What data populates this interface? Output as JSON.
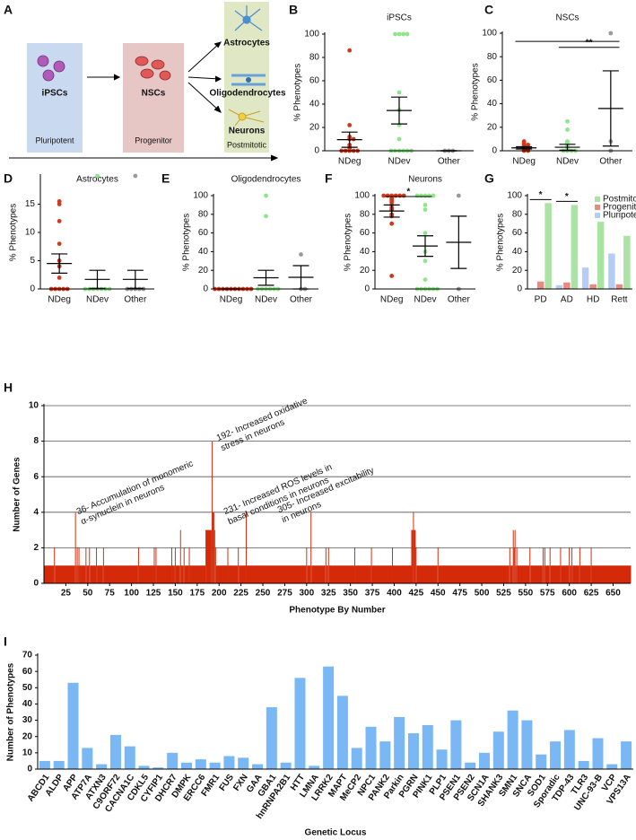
{
  "panel_a": {
    "panel": "A",
    "stages": [
      {
        "name": "iPSCs",
        "stage": "Pluripotent"
      },
      {
        "name": "NSCs",
        "stage": "Progenitor"
      }
    ],
    "fates": [
      "Astrocytes",
      "Oligodendrocytes",
      "Neurons"
    ],
    "fate_stage": "Postmitotic"
  },
  "chart_data": [
    {
      "panel": "B",
      "type": "dot",
      "title": "iPSCs",
      "ylabel": "% Phenotypes",
      "ylim": [
        0,
        100
      ],
      "yticks": [
        0,
        20,
        40,
        60,
        80,
        100
      ],
      "categories": [
        "NDeg",
        "NDev",
        "Other"
      ],
      "colors": [
        "#d2391b",
        "#8ee58a",
        "#9a9a9a"
      ],
      "points": [
        [
          86,
          22,
          12,
          10,
          10,
          5,
          3,
          2,
          0,
          0,
          0,
          0,
          0
        ],
        [
          100,
          100,
          100,
          100,
          50,
          35,
          22,
          10,
          0,
          0,
          0,
          0,
          0,
          0
        ],
        [
          0,
          0,
          0
        ]
      ],
      "means": [
        9.5,
        34.5,
        0
      ],
      "errors": [
        6.5,
        11.5,
        0
      ]
    },
    {
      "panel": "C",
      "type": "dot",
      "title": "NSCs",
      "ylabel": "% Phenotypes",
      "ylim": [
        0,
        100
      ],
      "yticks": [
        0,
        20,
        40,
        60,
        80,
        100
      ],
      "categories": [
        "NDeg",
        "NDev",
        "Other"
      ],
      "colors": [
        "#d2391b",
        "#8ee58a",
        "#9a9a9a"
      ],
      "points": [
        [
          8,
          7,
          6,
          5,
          5,
          4,
          3,
          2,
          2,
          1,
          0,
          0
        ],
        [
          25,
          18,
          8,
          7,
          4,
          2,
          0,
          0,
          0,
          0
        ],
        [
          100,
          8,
          0
        ]
      ],
      "means": [
        2.5,
        3,
        36
      ],
      "errors": [
        1,
        2.5,
        32
      ],
      "significance": "**"
    },
    {
      "panel": "D",
      "type": "dot",
      "title": "Astrocytes",
      "ylabel": "% Phenotypes",
      "ylim": [
        0,
        20
      ],
      "yticks": [
        0,
        5,
        10,
        15
      ],
      "categories": [
        "NDeg",
        "NDev",
        "Other"
      ],
      "colors": [
        "#d2391b",
        "#8ee58a",
        "#9a9a9a"
      ],
      "points": [
        [
          15.5,
          15,
          12,
          8,
          5,
          4,
          2,
          0,
          0,
          0,
          0,
          0
        ],
        [
          20,
          0,
          0,
          0,
          0,
          0,
          0,
          0
        ],
        [
          20,
          0,
          0,
          0,
          0,
          0
        ]
      ],
      "means": [
        4.5,
        1.7,
        1.7
      ],
      "errors": [
        1.7,
        1.6,
        1.6
      ]
    },
    {
      "panel": "E",
      "type": "dot",
      "title": "Oligodendrocytes",
      "ylabel": "% Phenotypes",
      "ylim": [
        0,
        100
      ],
      "yticks": [
        0,
        20,
        40,
        60,
        80,
        100
      ],
      "categories": [
        "NDeg",
        "NDev",
        "Other"
      ],
      "colors": [
        "#d2391b",
        "#8ee58a",
        "#9a9a9a"
      ],
      "points": [
        [
          0,
          0,
          0,
          0,
          0,
          0,
          0,
          0,
          0,
          0
        ],
        [
          100,
          78,
          0,
          0,
          0,
          0,
          0,
          0
        ],
        [
          37,
          0,
          0
        ]
      ],
      "means": [
        0,
        12,
        12.5
      ],
      "errors": [
        0,
        8,
        12.5
      ]
    },
    {
      "panel": "F",
      "type": "dot",
      "title": "Neurons",
      "ylabel": "% Phenotypes",
      "ylim": [
        0,
        100
      ],
      "yticks": [
        0,
        20,
        40,
        60,
        80,
        100
      ],
      "categories": [
        "NDeg",
        "NDev",
        "Other"
      ],
      "colors": [
        "#d2391b",
        "#8ee58a",
        "#9a9a9a"
      ],
      "points": [
        [
          100,
          100,
          100,
          100,
          100,
          100,
          97,
          95,
          93,
          90,
          87,
          85,
          80,
          78,
          70,
          14
        ],
        [
          100,
          100,
          100,
          100,
          100,
          90,
          85,
          60,
          40,
          30,
          10,
          0,
          0,
          0,
          0,
          0,
          0
        ],
        [
          100,
          0
        ]
      ],
      "means": [
        83.5,
        46,
        50
      ],
      "errors": [
        6.5,
        11,
        28
      ],
      "significance": "*"
    },
    {
      "panel": "G",
      "type": "bar",
      "ylabel": "% Phenotypes",
      "ylim": [
        0,
        100
      ],
      "yticks": [
        0,
        20,
        40,
        60,
        80,
        100
      ],
      "categories": [
        "PD",
        "AD",
        "HD",
        "Rett"
      ],
      "legend": "top-right",
      "series": [
        {
          "name": "Postmitotic",
          "color": "#a9e4a2",
          "values": [
            92,
            90,
            72,
            57
          ]
        },
        {
          "name": "Progenitor",
          "color": "#e98a80",
          "values": [
            8,
            7,
            5,
            5
          ]
        },
        {
          "name": "Pluripotent",
          "color": "#b5cdf3",
          "values": [
            0,
            4,
            23,
            38
          ]
        }
      ],
      "significance": [
        "*",
        "*"
      ]
    },
    {
      "panel": "H",
      "type": "histogram",
      "xlabel": "Phenotype By Number",
      "ylabel": "Number of Genes",
      "color": "#d42a0a",
      "grid": true,
      "xlim": [
        0,
        670
      ],
      "xticks": [
        25,
        50,
        75,
        100,
        125,
        150,
        175,
        200,
        225,
        250,
        275,
        300,
        325,
        350,
        375,
        400,
        425,
        450,
        475,
        500,
        525,
        550,
        575,
        600,
        625,
        650
      ],
      "ylim": [
        0,
        10
      ],
      "yticks": [
        0,
        2,
        4,
        6,
        8,
        10
      ],
      "bins": [
        0.5,
        11.5,
        12.5,
        35.5,
        36.5,
        37.5,
        38.5,
        39.5,
        40.5,
        47.5,
        48.5,
        51.5,
        52.5,
        59.5,
        60.5,
        67.5,
        68.5,
        107.5,
        108.5,
        125.5,
        126.5,
        127.5,
        128.5,
        145.5,
        146.5,
        149.5,
        150.5,
        155.5,
        156.5,
        159.5,
        160.5,
        165.5,
        166.5,
        184.5,
        191.5,
        192.5,
        194.5,
        195.5,
        196.5,
        209.5,
        210.5,
        221.5,
        222.5,
        230.5,
        231.5,
        299.5,
        300.5,
        304.5,
        305.5,
        321.5,
        322.5,
        324.5,
        325.5,
        354.5,
        355.5,
        373.5,
        374.5,
        397.5,
        398.5,
        419.5,
        421.5,
        422.5,
        424.5,
        425.5,
        449.5,
        450.5,
        531.5,
        532.5,
        535.5,
        536.5,
        537.5,
        538.5,
        539.5,
        540.5,
        554.5,
        555.5,
        569.5,
        570.5,
        571.5,
        572.5,
        577.5,
        578.5,
        589.5,
        590.5,
        599.5,
        600.5,
        602.5,
        603.5,
        611.5,
        612.5,
        624.5,
        625.5,
        670.5
      ],
      "counts": [
        1,
        2,
        1,
        4,
        1,
        2,
        1,
        2,
        1,
        2,
        1,
        2,
        1,
        2,
        1,
        2,
        1,
        2,
        1,
        2,
        1,
        2,
        1,
        2,
        1,
        2,
        1,
        3,
        1,
        2,
        1,
        2,
        1,
        3,
        8,
        4,
        3,
        2,
        1,
        2,
        1,
        2,
        1,
        4,
        1,
        2,
        1,
        4,
        1,
        2,
        1,
        2,
        1,
        2,
        1,
        2,
        1,
        2,
        1,
        3,
        4,
        3,
        2,
        1,
        2,
        1,
        2,
        1,
        3,
        2,
        3,
        1,
        2,
        1,
        2,
        1,
        2,
        1,
        2,
        1,
        2,
        1,
        2,
        1,
        2,
        1,
        2,
        1,
        2,
        1,
        2,
        1
      ],
      "annotations": [
        {
          "lines": [
            "36- Accumulation of monomeric",
            "α-synuclein in neurons"
          ]
        },
        {
          "lines": [
            "192- Increased oxidative",
            "stress in neurons"
          ]
        },
        {
          "lines": [
            "231- Increased ROS levels in",
            "basal conditions in neurons"
          ]
        },
        {
          "lines": [
            "305- Increased excitability",
            "in neurons"
          ]
        }
      ]
    },
    {
      "panel": "I",
      "type": "bar",
      "xlabel": "Genetic Locus",
      "ylabel": "Number of Phenotypes",
      "color": "#7ab8f5",
      "ylim": [
        0,
        70
      ],
      "yticks": [
        0,
        10,
        20,
        30,
        40,
        50,
        60,
        70
      ],
      "categories": [
        "ABCD1",
        "ALDP",
        "APP",
        "ATP7A",
        "ATXN3",
        "C9ORF72",
        "CACNA1C",
        "CDKL5",
        "CYFIP1",
        "DHCR7",
        "DMPK",
        "ERCC6",
        "FMR1",
        "FUS",
        "FXN",
        "GAA",
        "GBA1",
        "hnRNPA2B1",
        "HTT",
        "LMNA",
        "LRRK2",
        "MAPT",
        "MeCP2",
        "NPC1",
        "PANK2",
        "Parkin",
        "PGRN",
        "PINK1",
        "PLP1",
        "PSEN1",
        "PSEN2",
        "SCN1A",
        "SHANK3",
        "SMN1",
        "SNCA",
        "SOD1",
        "Sporadic",
        "TDP-43",
        "TLR3",
        "UNC-93-B",
        "VCP",
        "VPS13A"
      ],
      "values": [
        5,
        5,
        53,
        13,
        3,
        21,
        14,
        2,
        1,
        10,
        4,
        6,
        4,
        8,
        7,
        3,
        38,
        4,
        56,
        2,
        63,
        45,
        13,
        26,
        17,
        32,
        22,
        27,
        12,
        30,
        4,
        10,
        23,
        36,
        30,
        9,
        17,
        24,
        5,
        19,
        3,
        17
      ]
    }
  ]
}
